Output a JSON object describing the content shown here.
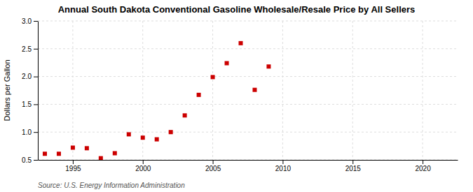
{
  "chart_data": {
    "type": "scatter",
    "title": "Annual South Dakota Conventional Gasoline Wholesale/Resale Price by All Sellers",
    "ylabel": "Dollars per Gallon",
    "source": "Source: U.S. Energy Information Administration",
    "x": [
      1993,
      1994,
      1995,
      1996,
      1997,
      1998,
      1999,
      2000,
      2001,
      2002,
      2003,
      2004,
      2005,
      2006,
      2007,
      2008,
      2009
    ],
    "values": [
      0.61,
      0.61,
      0.72,
      0.71,
      0.53,
      0.62,
      0.96,
      0.9,
      0.87,
      1.0,
      1.3,
      1.67,
      1.99,
      2.24,
      2.6,
      1.76,
      2.18
    ],
    "color": "#cc0000",
    "marker": "square",
    "xlim": [
      1992.5,
      2022.5
    ],
    "ylim": [
      0.5,
      3.0
    ],
    "xticks": [
      1995,
      2000,
      2005,
      2010,
      2015,
      2020
    ],
    "yticks": [
      0.5,
      {
        "value": 1.0,
        "label": "1.0"
      },
      1.5,
      {
        "value": 2.0,
        "label": "2.0"
      },
      2.5,
      {
        "value": 3.0,
        "label": "3.0"
      }
    ],
    "grid": true
  }
}
